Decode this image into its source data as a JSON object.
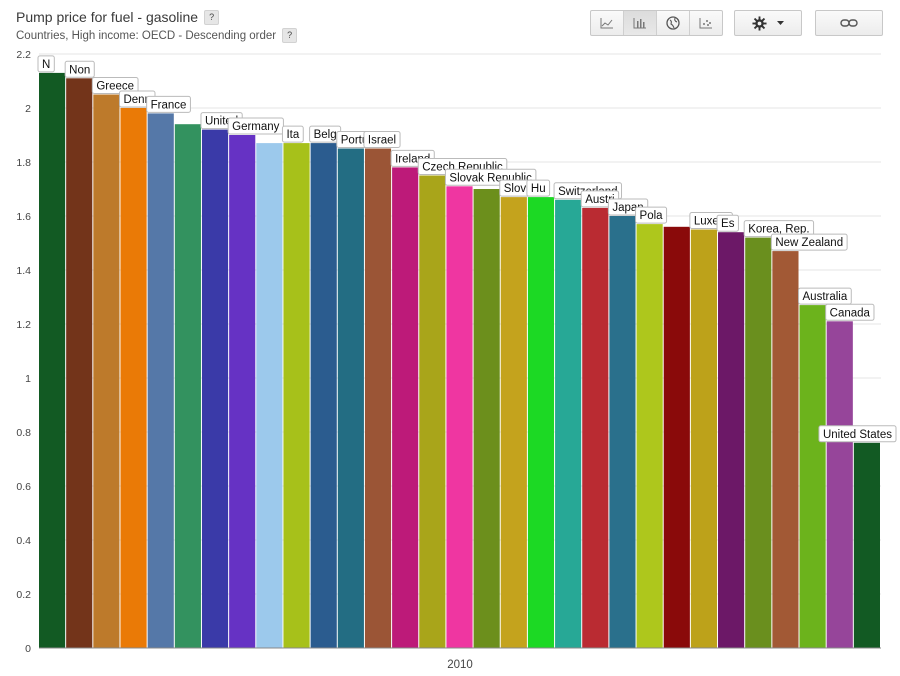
{
  "header": {
    "title": "Pump price for fuel - gasoline",
    "subtitle": "Countries, High income: OECD - Descending order",
    "help_label": "?"
  },
  "toolbar": {
    "buttons": [
      {
        "icon": "line-chart-icon",
        "active": false
      },
      {
        "icon": "bar-chart-icon",
        "active": true
      },
      {
        "icon": "globe-icon",
        "active": false
      },
      {
        "icon": "scatter-chart-icon",
        "active": false
      }
    ],
    "settings_icon": "gear-icon",
    "link_icon": "link-icon"
  },
  "chart_data": {
    "type": "bar",
    "title": "Pump price for fuel - gasoline",
    "subtitle": "Countries, High income: OECD - Descending order",
    "xlabel": "2010",
    "ylabel": "",
    "ylim": [
      0,
      2.2
    ],
    "yticks": [
      "0",
      "0.2",
      "0.4",
      "0.6",
      "0.8",
      "1",
      "1.2",
      "1.4",
      "1.6",
      "1.8",
      "2",
      "2.2"
    ],
    "grid": true,
    "categories": [
      "N",
      "Non",
      "Greece",
      "Denn",
      "France",
      "",
      "United",
      "Germany",
      "",
      "Ita",
      "Belg",
      "Portu",
      "Israel",
      "Ireland",
      "Czech Republic",
      "Slovak Republic",
      "",
      "Slov",
      "Hu",
      "Switzerland",
      "Austri",
      "Japan",
      "Pola",
      "",
      "Luxem",
      "Es",
      "Korea, Rep.",
      "New Zealand",
      "Australia",
      "Canada",
      "United States"
    ],
    "values": [
      2.13,
      2.11,
      2.05,
      2.0,
      1.98,
      1.94,
      1.92,
      1.9,
      1.87,
      1.87,
      1.87,
      1.85,
      1.85,
      1.78,
      1.75,
      1.71,
      1.7,
      1.67,
      1.67,
      1.66,
      1.63,
      1.6,
      1.57,
      1.56,
      1.55,
      1.54,
      1.52,
      1.47,
      1.27,
      1.21,
      0.76
    ],
    "colors": [
      "#125a23",
      "#73341a",
      "#bd7a2b",
      "#ea7a06",
      "#5578a8",
      "#33925f",
      "#3a3aa8",
      "#6632c4",
      "#9cc9ec",
      "#a7c11a",
      "#2b5c8f",
      "#236d83",
      "#9b5536",
      "#bd1a79",
      "#a9a51a",
      "#ef36a1",
      "#6c8f1c",
      "#c4a31d",
      "#1cd924",
      "#27a896",
      "#ba2b32",
      "#2a708c",
      "#aec71c",
      "#8a0a0a",
      "#bda21a",
      "#6c1867",
      "#6a8f1e",
      "#a25935",
      "#6cb31c",
      "#96459a",
      "#125a23"
    ]
  }
}
